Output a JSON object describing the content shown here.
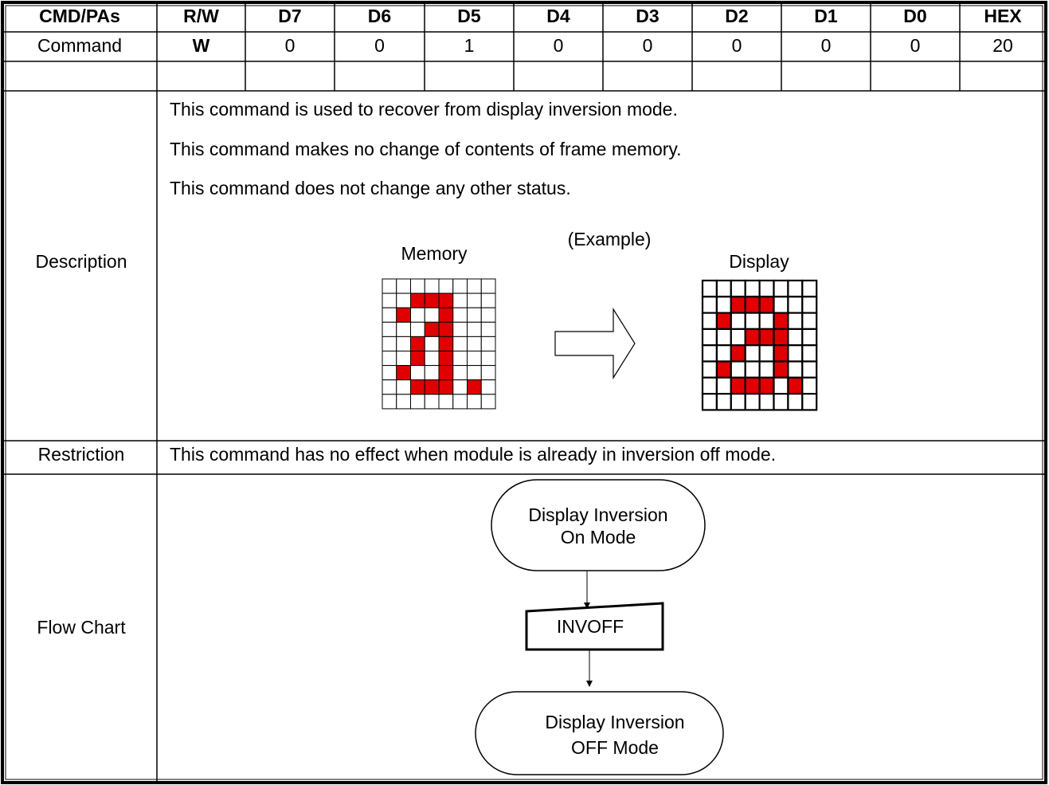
{
  "table": {
    "header": [
      "CMD/PAs",
      "R/W",
      "D7",
      "D6",
      "D5",
      "D4",
      "D3",
      "D2",
      "D1",
      "D0",
      "HEX"
    ],
    "command": [
      "Command",
      "W",
      "0",
      "0",
      "1",
      "0",
      "0",
      "0",
      "0",
      "0",
      "20"
    ]
  },
  "description": {
    "label": "Description",
    "lines": [
      "This command is used to recover from display inversion mode.",
      "This command makes no change of contents of frame memory.",
      "This command does not change any other status."
    ],
    "example": "(Example)",
    "memory": "Memory",
    "display": "Display"
  },
  "restriction": {
    "label": "Restriction",
    "text": "This command has no effect when module is already in inversion off mode."
  },
  "flow_chart": {
    "label": "Flow Chart",
    "nodes": [
      {
        "lines": [
          "Display Inversion",
          "On Mode"
        ]
      },
      {
        "lines": [
          "INVOFF"
        ]
      },
      {
        "lines": [
          "Display Inversion",
          "OFF Mode"
        ]
      }
    ]
  }
}
